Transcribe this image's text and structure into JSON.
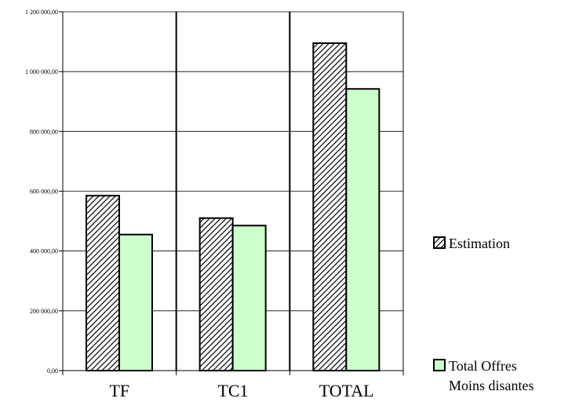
{
  "chart_data": {
    "type": "bar",
    "categories": [
      "TF",
      "TC1",
      "TOTAL"
    ],
    "series": [
      {
        "name": "Estimation",
        "values": [
          585000,
          510000,
          1095000
        ],
        "fill": "hatched"
      },
      {
        "name": "Total Offres Moins disantes",
        "values": [
          455000,
          485000,
          942000
        ],
        "fill": "#ccffcc"
      }
    ],
    "ylim": [
      0,
      1200000
    ],
    "yticks": [
      0,
      200000,
      400000,
      600000,
      800000,
      1000000,
      1200000
    ],
    "ytick_labels": [
      "0,00",
      "200 000,00",
      "400 000,00",
      "600 000,00",
      "800 000,00",
      "1 000 000,00",
      "1 200 000,00"
    ],
    "grid": true,
    "legend_position": "right",
    "legend": [
      {
        "lines": [
          "Estimation"
        ]
      },
      {
        "lines": [
          "Total Offres",
          "Moins disantes"
        ]
      }
    ],
    "colors": {
      "series2": "#ccffcc",
      "bar_stroke": "#000000",
      "grid": "#000000"
    }
  }
}
